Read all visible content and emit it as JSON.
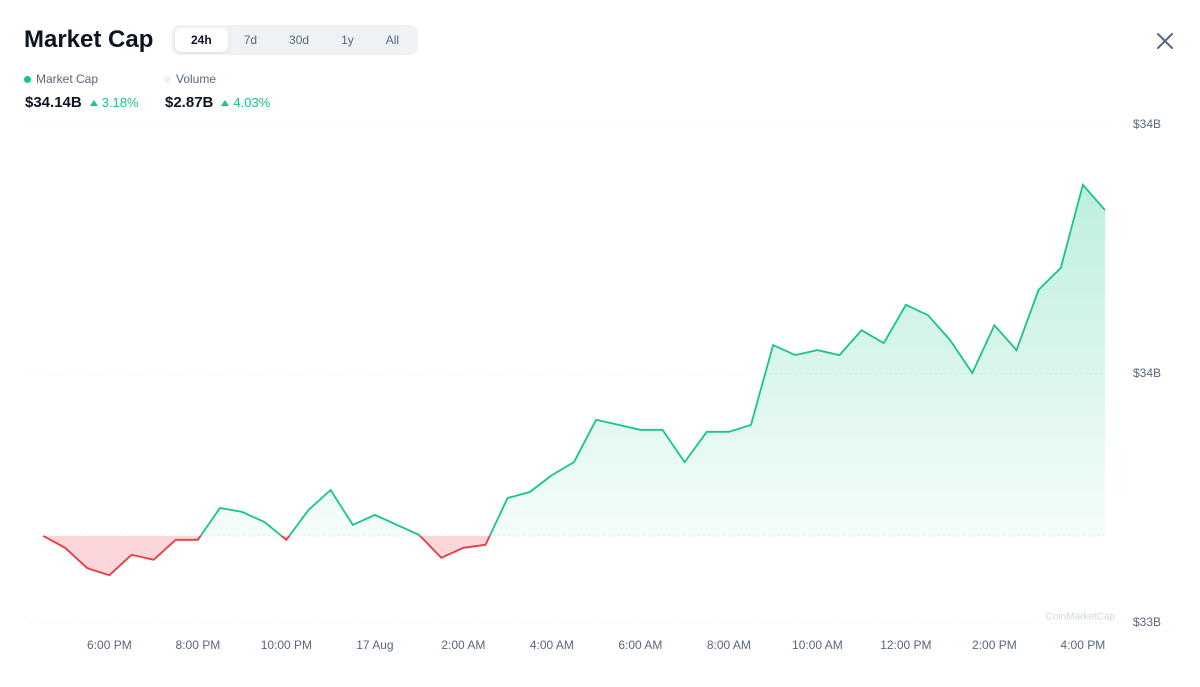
{
  "header": {
    "title": "Market Cap",
    "tabs": [
      "24h",
      "7d",
      "30d",
      "1y",
      "All"
    ],
    "selected_tab": 0,
    "stats": [
      {
        "name": "Market Cap",
        "color": "#16c784",
        "value": "$34.14B",
        "change": "3.18%"
      },
      {
        "name": "Volume",
        "color": "#eff2f5",
        "value": "$2.87B",
        "change": "4.03%"
      }
    ],
    "watermark": "CoinMarketCap"
  },
  "chart_data": {
    "type": "line",
    "categories": [
      null,
      null,
      null,
      "6:00 PM",
      null,
      null,
      null,
      "8:00 PM",
      null,
      null,
      null,
      "10:00 PM",
      null,
      null,
      null,
      "17 Aug",
      null,
      null,
      null,
      "2:00 AM",
      null,
      null,
      null,
      "4:00 AM",
      null,
      null,
      null,
      "6:00 AM",
      null,
      null,
      null,
      "8:00 AM",
      null,
      null,
      null,
      "10:00 AM",
      null,
      null,
      null,
      "12:00 PM",
      null,
      null,
      null,
      "2:00 PM",
      null,
      null,
      null,
      "4:00 PM",
      null
    ],
    "series": [
      {
        "name": "Market Cap",
        "color": "#16c784",
        "negative_color": "#ea3943",
        "values": [
          33.475,
          33.451,
          33.41,
          33.396,
          33.437,
          33.427,
          33.467,
          33.467,
          33.531,
          33.523,
          33.503,
          33.467,
          33.527,
          33.567,
          33.497,
          33.517,
          33.497,
          33.477,
          33.431,
          33.451,
          33.457,
          33.551,
          33.563,
          33.597,
          33.623,
          33.708,
          33.698,
          33.688,
          33.688,
          33.623,
          33.684,
          33.684,
          33.698,
          33.858,
          33.838,
          33.848,
          33.838,
          33.888,
          33.862,
          33.939,
          33.918,
          33.868,
          33.802,
          33.898,
          33.848,
          33.969,
          34.013,
          34.18,
          34.129
        ]
      }
    ],
    "ylim": [
      33.3,
      34.3
    ],
    "yticks": [
      {
        "value": 33.3,
        "label": "$33B"
      },
      {
        "value": 33.8,
        "label": "$34B"
      },
      {
        "value": 34.3,
        "label": "$34B"
      }
    ],
    "grid": true
  }
}
